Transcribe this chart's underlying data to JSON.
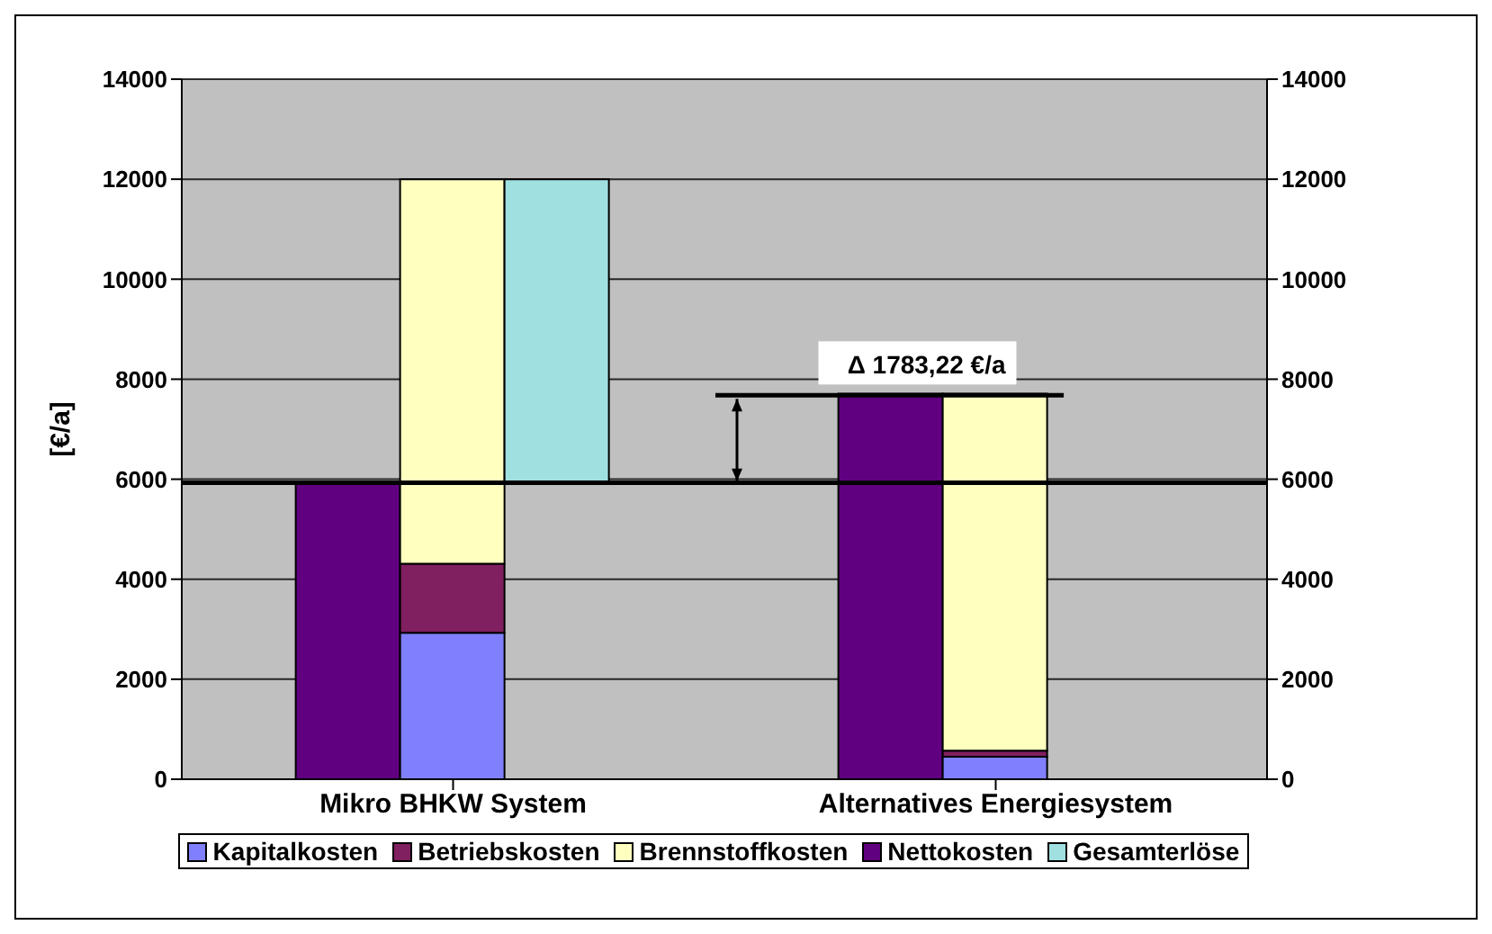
{
  "chart_data": {
    "type": "bar",
    "ylabel": "[€/a]",
    "categories": [
      "Mikro BHKW System",
      "Alternatives Energiesystem"
    ],
    "series": [
      {
        "name": "Kapitalkosten",
        "color": "#8080ff",
        "values": [
          2930,
          450
        ],
        "base": [
          0,
          0
        ]
      },
      {
        "name": "Betriebskosten",
        "color": "#802060",
        "values": [
          1380,
          120
        ],
        "base": [
          2930,
          450
        ]
      },
      {
        "name": "Brennstoffkosten",
        "color": "#ffffc0",
        "values": [
          7690,
          7140
        ],
        "base": [
          4310,
          570
        ]
      },
      {
        "name": "Nettokosten",
        "color": "#600080",
        "values": [
          5930,
          7710
        ]
      },
      {
        "name": "Gesamterlöse",
        "color": "#a0e0e0",
        "values": [
          6070,
          null
        ],
        "base": [
          5930,
          null
        ]
      }
    ],
    "ylim": [
      0,
      14000
    ],
    "yticks": [
      0,
      2000,
      4000,
      6000,
      8000,
      10000,
      12000,
      14000
    ],
    "y2lim": [
      0,
      14000
    ],
    "y2ticks": [
      0,
      2000,
      4000,
      6000,
      8000,
      10000,
      12000,
      14000
    ],
    "grid": "y",
    "legend": "bottom",
    "ref_lines": [
      {
        "axis": "y",
        "value": 5930,
        "color": "#000000"
      }
    ],
    "annotations": [
      {
        "text": "Δ 1783,22 €/a",
        "x": "Alternatives Energiesystem",
        "y": 7710
      }
    ]
  }
}
